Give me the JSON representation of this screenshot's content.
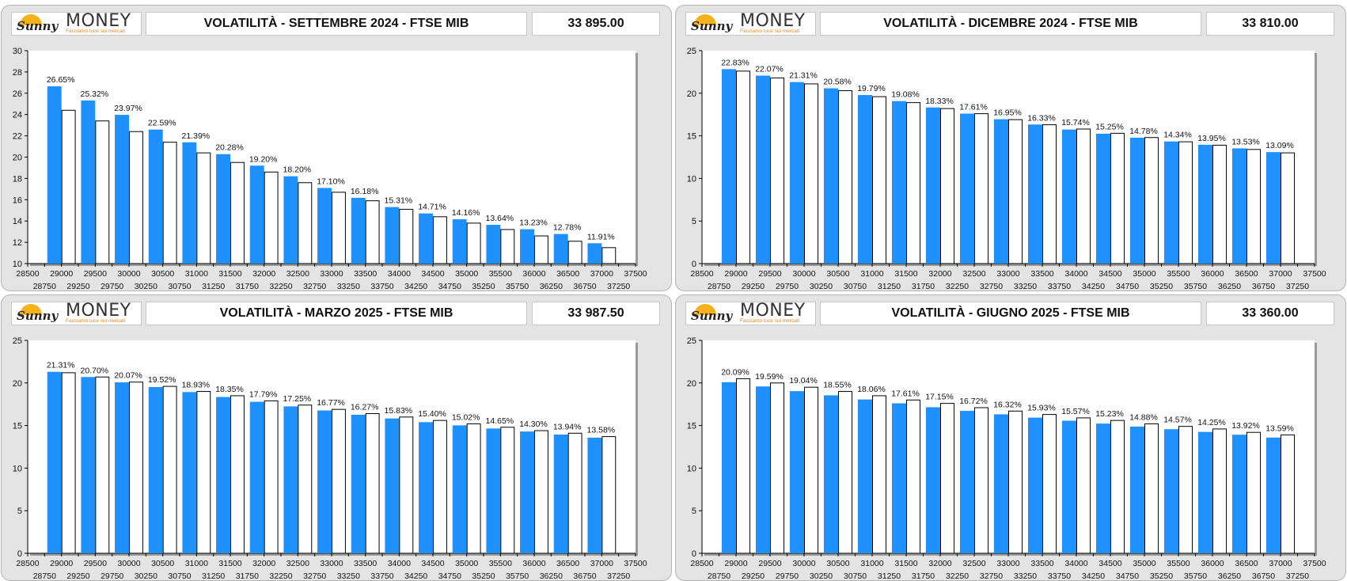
{
  "colors": {
    "bar_primary": "#1e90ff",
    "bar_secondary": "#ffffff",
    "logo_accent": "#e08a1e"
  },
  "panels": [
    {
      "logo": {
        "name": "MONEY",
        "script": "Sunny",
        "tagline": "Facciamo luce sui mercati"
      },
      "title": "VOLATILITÀ - SETTEMBRE 2024 - FTSE MIB",
      "price": "33 895.00"
    },
    {
      "logo": {
        "name": "MONEY",
        "script": "Sunny",
        "tagline": "Facciamo luce sui mercati"
      },
      "title": "VOLATILITÀ - DICEMBRE 2024 - FTSE MIB",
      "price": "33 810.00"
    },
    {
      "logo": {
        "name": "MONEY",
        "script": "Sunny",
        "tagline": "Facciamo luce sui mercati"
      },
      "title": "VOLATILITÀ - MARZO 2025 - FTSE MIB",
      "price": "33 987.50"
    },
    {
      "logo": {
        "name": "MONEY",
        "script": "Sunny",
        "tagline": "Facciamo luce sui mercati"
      },
      "title": "VOLATILITÀ - GIUGNO 2025 - FTSE MIB",
      "price": "33 360.00"
    }
  ],
  "chart_data": [
    {
      "type": "bar",
      "title": "VOLATILITÀ - SETTEMBRE 2024 - FTSE MIB",
      "x_ticks_top": [
        "28500",
        "29000",
        "29500",
        "30000",
        "30500",
        "31000",
        "31500",
        "32000",
        "32500",
        "33000",
        "33500",
        "34000",
        "34500",
        "35000",
        "35500",
        "36000",
        "36500",
        "37000",
        "37500"
      ],
      "x_ticks_bottom": [
        "28750",
        "29250",
        "29750",
        "30250",
        "30750",
        "31250",
        "31750",
        "32250",
        "32750",
        "33250",
        "33750",
        "34250",
        "34750",
        "35250",
        "35750",
        "36250",
        "36750",
        "37250"
      ],
      "ylim": [
        10,
        30
      ],
      "yticks": [
        10,
        12,
        14,
        16,
        18,
        20,
        22,
        24,
        26,
        28,
        30
      ],
      "series": [
        {
          "values": [
            26.65,
            25.32,
            23.97,
            22.59,
            21.39,
            20.28,
            19.2,
            18.2,
            17.1,
            16.18,
            15.31,
            14.71,
            14.16,
            13.64,
            13.23,
            12.78,
            11.91
          ]
        },
        {
          "values": [
            24.4,
            23.4,
            22.4,
            21.4,
            20.4,
            19.5,
            18.6,
            17.6,
            16.7,
            15.9,
            15.1,
            14.4,
            13.8,
            13.2,
            12.6,
            12.1,
            11.5
          ]
        }
      ],
      "labels": [
        "26.65%",
        "25.32%",
        "23.97%",
        "22.59%",
        "21.39%",
        "20.28%",
        "19.20%",
        "18.20%",
        "17.10%",
        "16.18%",
        "15.31%",
        "14.71%",
        "14.16%",
        "13.64%",
        "13.23%",
        "12.78%",
        "11.91%"
      ]
    },
    {
      "type": "bar",
      "title": "VOLATILITÀ - DICEMBRE 2024 - FTSE MIB",
      "x_ticks_top": [
        "28500",
        "29000",
        "29500",
        "30000",
        "30500",
        "31000",
        "31500",
        "32000",
        "32500",
        "33000",
        "33500",
        "34000",
        "34500",
        "35000",
        "35500",
        "36000",
        "36500",
        "37000",
        "37500"
      ],
      "x_ticks_bottom": [
        "28750",
        "29250",
        "29750",
        "30250",
        "30750",
        "31250",
        "31750",
        "32250",
        "32750",
        "33250",
        "33750",
        "34250",
        "34750",
        "35250",
        "35750",
        "36250",
        "36750",
        "37250"
      ],
      "ylim": [
        0,
        25
      ],
      "yticks": [
        0,
        5,
        10,
        15,
        20,
        25
      ],
      "series": [
        {
          "values": [
            22.83,
            22.07,
            21.31,
            20.58,
            19.79,
            19.08,
            18.33,
            17.61,
            16.95,
            16.33,
            15.74,
            15.25,
            14.78,
            14.34,
            13.95,
            13.53,
            13.09
          ]
        },
        {
          "values": [
            22.6,
            21.8,
            21.1,
            20.3,
            19.6,
            18.9,
            18.2,
            17.6,
            16.9,
            16.3,
            15.8,
            15.3,
            14.8,
            14.3,
            13.9,
            13.4,
            13.0
          ]
        }
      ],
      "labels": [
        "22.83%",
        "22.07%",
        "21.31%",
        "20.58%",
        "19.79%",
        "19.08%",
        "18.33%",
        "17.61%",
        "16.95%",
        "16.33%",
        "15.74%",
        "15.25%",
        "14.78%",
        "14.34%",
        "13.95%",
        "13.53%",
        "13.09%"
      ]
    },
    {
      "type": "bar",
      "title": "VOLATILITÀ - MARZO 2025 - FTSE MIB",
      "x_ticks_top": [
        "28500",
        "29000",
        "29500",
        "30000",
        "30500",
        "31000",
        "31500",
        "32000",
        "32500",
        "33000",
        "33500",
        "34000",
        "34500",
        "35000",
        "35500",
        "36000",
        "36500",
        "37000",
        "37500"
      ],
      "x_ticks_bottom": [
        "28750",
        "29250",
        "29750",
        "30250",
        "30750",
        "31250",
        "31750",
        "32250",
        "32750",
        "33250",
        "33750",
        "34250",
        "34750",
        "35250",
        "35750",
        "36250",
        "36750",
        "37250"
      ],
      "ylim": [
        0,
        25
      ],
      "yticks": [
        0,
        5,
        10,
        15,
        20,
        25
      ],
      "series": [
        {
          "values": [
            21.31,
            20.7,
            20.07,
            19.52,
            18.93,
            18.35,
            17.79,
            17.25,
            16.77,
            16.27,
            15.83,
            15.4,
            15.02,
            14.65,
            14.3,
            13.94,
            13.58
          ]
        },
        {
          "values": [
            21.2,
            20.7,
            20.1,
            19.6,
            19.0,
            18.5,
            17.9,
            17.4,
            16.9,
            16.4,
            16.0,
            15.6,
            15.2,
            14.8,
            14.4,
            14.1,
            13.7
          ]
        }
      ],
      "labels": [
        "21.31%",
        "20.70%",
        "20.07%",
        "19.52%",
        "18.93%",
        "18.35%",
        "17.79%",
        "17.25%",
        "16.77%",
        "16.27%",
        "15.83%",
        "15.40%",
        "15.02%",
        "14.65%",
        "14.30%",
        "13.94%",
        "13.58%"
      ]
    },
    {
      "type": "bar",
      "title": "VOLATILITÀ - GIUGNO 2025 - FTSE MIB",
      "x_ticks_top": [
        "28500",
        "29000",
        "29500",
        "30000",
        "30500",
        "31000",
        "31500",
        "32000",
        "32500",
        "33000",
        "33500",
        "34000",
        "34500",
        "35000",
        "35500",
        "36000",
        "36500",
        "37000",
        "37500"
      ],
      "x_ticks_bottom": [
        "28750",
        "29250",
        "29750",
        "30250",
        "30750",
        "31250",
        "31750",
        "32250",
        "32750",
        "33250",
        "33750",
        "34250",
        "34750",
        "35250",
        "35750",
        "36250",
        "36750",
        "37250"
      ],
      "ylim": [
        0,
        25
      ],
      "yticks": [
        0,
        5,
        10,
        15,
        20,
        25
      ],
      "series": [
        {
          "values": [
            20.09,
            19.59,
            19.04,
            18.55,
            18.06,
            17.61,
            17.15,
            16.72,
            16.32,
            15.93,
            15.57,
            15.23,
            14.88,
            14.57,
            14.25,
            13.92,
            13.59
          ]
        },
        {
          "values": [
            20.5,
            20.0,
            19.5,
            19.0,
            18.5,
            18.0,
            17.6,
            17.1,
            16.7,
            16.3,
            15.9,
            15.6,
            15.2,
            14.9,
            14.6,
            14.2,
            13.9
          ]
        }
      ],
      "labels": [
        "20.09%",
        "19.59%",
        "19.04%",
        "18.55%",
        "18.06%",
        "17.61%",
        "17.15%",
        "16.72%",
        "16.32%",
        "15.93%",
        "15.57%",
        "15.23%",
        "14.88%",
        "14.57%",
        "14.25%",
        "13.92%",
        "13.59%"
      ]
    }
  ]
}
